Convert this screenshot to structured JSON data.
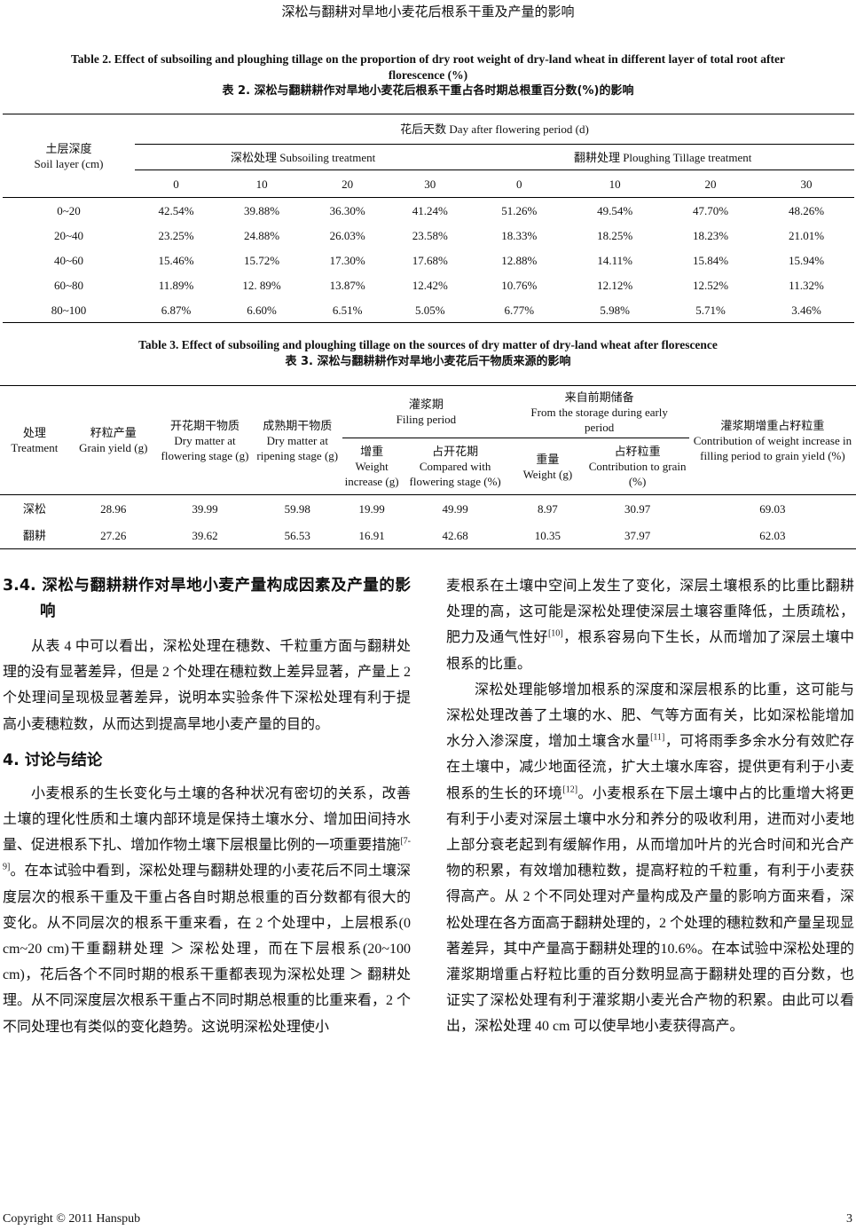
{
  "running_head": "深松与翻耕对旱地小麦花后根系干重及产量的影响",
  "table2": {
    "caption_en_1": "Table 2. Effect of subsoiling and ploughing tillage on the proportion of dry root weight of dry-land wheat in different layer of total root after",
    "caption_en_2": "florescence (%)",
    "caption_cn": "表 2.  深松与翻耕耕作对旱地小麦花后根系干重占各时期总根重百分数(%)的影响",
    "soil_layer_cn": "土层深度",
    "soil_layer_en": "Soil layer (cm)",
    "period_header": "花后天数  Day after flowering period (d)",
    "subsoiling_header": "深松处理  Subsoiling treatment",
    "ploughing_header": "翻耕处理  Ploughing Tillage treatment",
    "days": [
      "0",
      "10",
      "20",
      "30",
      "0",
      "10",
      "20",
      "30"
    ],
    "rows": [
      {
        "layer": "0~20",
        "values": [
          "42.54%",
          "39.88%",
          "36.30%",
          "41.24%",
          "51.26%",
          "49.54%",
          "47.70%",
          "48.26%"
        ]
      },
      {
        "layer": "20~40",
        "values": [
          "23.25%",
          "24.88%",
          "26.03%",
          "23.58%",
          "18.33%",
          "18.25%",
          "18.23%",
          "21.01%"
        ]
      },
      {
        "layer": "40~60",
        "values": [
          "15.46%",
          "15.72%",
          "17.30%",
          "17.68%",
          "12.88%",
          "14.11%",
          "15.84%",
          "15.94%"
        ]
      },
      {
        "layer": "60~80",
        "values": [
          "11.89%",
          "12. 89%",
          "13.87%",
          "12.42%",
          "10.76%",
          "12.12%",
          "12.52%",
          "11.32%"
        ]
      },
      {
        "layer": "80~100",
        "values": [
          "6.87%",
          "6.60%",
          "6.51%",
          "5.05%",
          "6.77%",
          "5.98%",
          "5.71%",
          "3.46%"
        ]
      }
    ]
  },
  "table3": {
    "caption_en": "Table 3. Effect of subsoiling and ploughing tillage on the sources of dry matter of dry-land wheat after florescence",
    "caption_cn": "表 3.  深松与翻耕耕作对旱地小麦花后干物质来源的影响",
    "headers": {
      "treatment_cn": "处理",
      "treatment_en": "Treatment",
      "yield_cn": "籽粒产量",
      "yield_en": "Grain yield (g)",
      "flower_cn": "开花期干物质",
      "flower_en": "Dry matter at flowering stage (g)",
      "ripen_cn": "成熟期干物质",
      "ripen_en": "Dry matter at ripening stage (g)",
      "filling_cn": "灌浆期",
      "filling_en": "Filing period",
      "storage_cn": "来自前期储备",
      "storage_en": "From the storage during early period",
      "contrib_cn": "灌浆期增重占籽粒重",
      "contrib_en": "Contribution of weight increase in filling period to grain yield (%)",
      "wi_cn": "增重",
      "wi_en": "Weight increase (g)",
      "cmp_cn": "占开花期",
      "cmp_en": "Compared with flowering stage (%)",
      "w_cn": "重量",
      "w_en": "Weight (g)",
      "cg_cn": "占籽粒重",
      "cg_en": "Contribution to grain (%)"
    },
    "rows": [
      {
        "treatment": "深松",
        "values": [
          "28.96",
          "39.99",
          "59.98",
          "19.99",
          "49.99",
          "8.97",
          "30.97",
          "69.03"
        ]
      },
      {
        "treatment": "翻耕",
        "values": [
          "27.26",
          "39.62",
          "56.53",
          "16.91",
          "42.68",
          "10.35",
          "37.97",
          "62.03"
        ]
      }
    ]
  },
  "body": {
    "h34": "3.4.  深松与翻耕耕作对旱地小麦产量构成因素及产量的影响",
    "p1": [
      {
        "t": "从表 4 中可以看出，深松处理在穗数、千粒重方面与翻耕处理的没有显著差异，但是 2 个处理在穗粒数上差异显著，产量上 2 个处理间呈现极显著差异，说明本实验条件下深松处理有利于提高小麦穗粒数，从而达到提高旱地小麦产量的目的。"
      }
    ],
    "h4": "4.  讨论与结论",
    "p2": [
      {
        "t": "小麦根系的生长变化与土壤的各种状况有密切的关系，改善土壤的理化性质和土壤内部环境是保持土壤水分、增加田间持水量、促进根系下扎、增加作物土壤下层根量比例的一项重要措施"
      },
      {
        "sup": "[7-9]"
      },
      {
        "t": "。在本试验中看到，深松处理与翻耕处理的小麦花后不同土壤深度层次的根系干重及干重占各自时期总根重的百分数都有很大的变化。从不同层次的根系干重来看，在 2 个处理中，上层根系(0 cm~20 cm)干重翻耕处理 ＞ 深松处理，而在下层根系(20~100 cm)，花后各个不同时期的根系干重都表现为深松处理 ＞ 翻耕处理。从不同深度层次根系干重占不同时期总根重的比重来看，2 个不同处理也有类似的变化趋势。这说明深松处理使小"
      }
    ],
    "p3": [
      {
        "t": "麦根系在土壤中空间上发生了变化，深层土壤根系的比重比翻耕处理的高，这可能是深松处理使深层土壤容重降低，土质疏松，肥力及通气性好"
      },
      {
        "sup": "[10]"
      },
      {
        "t": "，根系容易向下生长，从而增加了深层土壤中根系的比重。"
      }
    ],
    "p4": [
      {
        "t": "深松处理能够增加根系的深度和深层根系的比重，这可能与深松处理改善了土壤的水、肥、气等方面有关，比如深松能增加水分入渗深度，增加土壤含水量"
      },
      {
        "sup": "[11]"
      },
      {
        "t": "，可将雨季多余水分有效贮存在土壤中，减少地面径流，扩大土壤水库容，提供更有利于小麦根系的生长的环境"
      },
      {
        "sup": "[12]"
      },
      {
        "t": "。小麦根系在下层土壤中占的比重增大将更有利于小麦对深层土壤中水分和养分的吸收利用，进而对小麦地上部分衰老起到有缓解作用，从而增加叶片的光合时间和光合产物的积累，有效增加穗粒数，提高籽粒的千粒重，有利于小麦获得高产。从 2 个不同处理对产量构成及产量的影响方面来看，深松处理在各方面高于翻耕处理的，2 个处理的穗粒数和产量呈现显著差异，其中产量高于翻耕处理的10.6%。在本试验中深松处理的灌浆期增重占籽粒比重的百分数明显高于翻耕处理的百分数，也证实了深松处理有利于灌浆期小麦光合产物的积累。由此可以看出，深松处理 40 cm 可以使旱地小麦获得高产。"
      }
    ]
  },
  "footer": {
    "copyright": "Copyright © 2011 Hanspub",
    "page": "3"
  }
}
